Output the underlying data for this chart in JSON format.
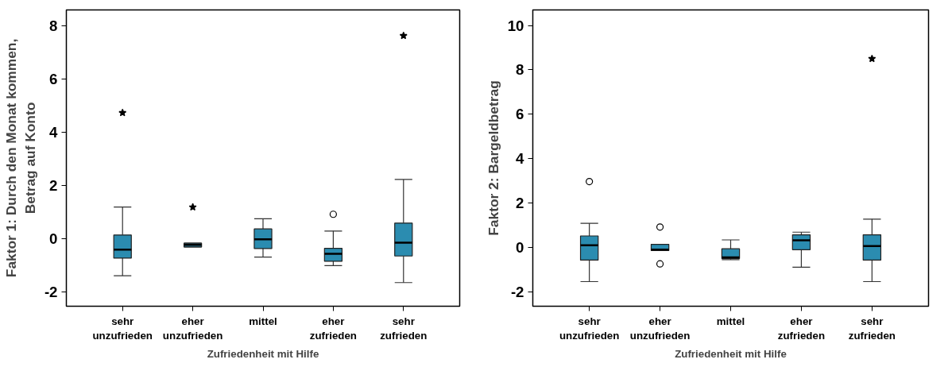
{
  "chart_data": [
    {
      "type": "box",
      "xlabel": "Zufriedenheit mit Hilfe",
      "ylabel": "Faktor 1: Durch den Monat kommen,\nBetrag auf Konto",
      "categories": [
        "sehr unzufrieden",
        "eher unzufrieden",
        "mittel",
        "eher zufrieden",
        "sehr zufrieden"
      ],
      "color": "#2b8cb0",
      "boxes": [
        {
          "low": -1.4,
          "q1": -0.74,
          "median": -0.42,
          "q3": 0.13,
          "high": 1.18
        },
        {
          "low": -0.32,
          "q1": -0.32,
          "median": -0.24,
          "q3": -0.18,
          "high": -0.18
        },
        {
          "low": -0.7,
          "q1": -0.38,
          "median": -0.03,
          "q3": 0.36,
          "high": 0.74
        },
        {
          "low": -1.02,
          "q1": -0.86,
          "median": -0.58,
          "q3": -0.37,
          "high": 0.28,
          "outliers": [
            0.91
          ]
        },
        {
          "low": -1.66,
          "q1": -0.66,
          "median": -0.16,
          "q3": 0.58,
          "high": 2.22
        }
      ],
      "series": [
        {
          "type": "scatter",
          "marker": "star",
          "color": "#000000",
          "x": [
            "sehr unzufrieden",
            "eher unzufrieden",
            "sehr zufrieden"
          ],
          "values": [
            4.73,
            1.18,
            7.63
          ]
        }
      ],
      "ylim": [
        -2.55,
        8.6
      ],
      "yticks": [
        -2,
        0,
        2,
        4,
        6,
        8
      ],
      "grid": false
    },
    {
      "type": "box",
      "xlabel": "Zufriedenheit mit Hilfe",
      "ylabel": "Faktor 2: Bargeldbetrag",
      "categories": [
        "sehr unzufrieden",
        "eher unzufrieden",
        "mittel",
        "eher zufrieden",
        "sehr zufrieden"
      ],
      "color": "#2b8cb0",
      "boxes": [
        {
          "low": -1.55,
          "q1": -0.58,
          "median": 0.09,
          "q3": 0.51,
          "high": 1.08,
          "outliers": [
            2.96
          ]
        },
        {
          "low": -0.15,
          "q1": -0.15,
          "median": -0.11,
          "q3": 0.13,
          "high": 0.13,
          "outliers": [
            0.91,
            -0.75
          ]
        },
        {
          "low": -0.56,
          "q1": -0.51,
          "median": -0.46,
          "q3": -0.07,
          "high": 0.33
        },
        {
          "low": -0.9,
          "q1": -0.11,
          "median": 0.31,
          "q3": 0.56,
          "high": 0.68
        },
        {
          "low": -1.55,
          "q1": -0.58,
          "median": 0.05,
          "q3": 0.56,
          "high": 1.27
        }
      ],
      "series": [
        {
          "type": "scatter",
          "marker": "star",
          "color": "#000000",
          "x": [
            "sehr zufrieden"
          ],
          "values": [
            8.5
          ]
        }
      ],
      "ylim": [
        -2.66,
        10.7
      ],
      "yticks": [
        -2,
        0,
        2,
        4,
        6,
        8,
        10
      ],
      "grid": false
    }
  ]
}
